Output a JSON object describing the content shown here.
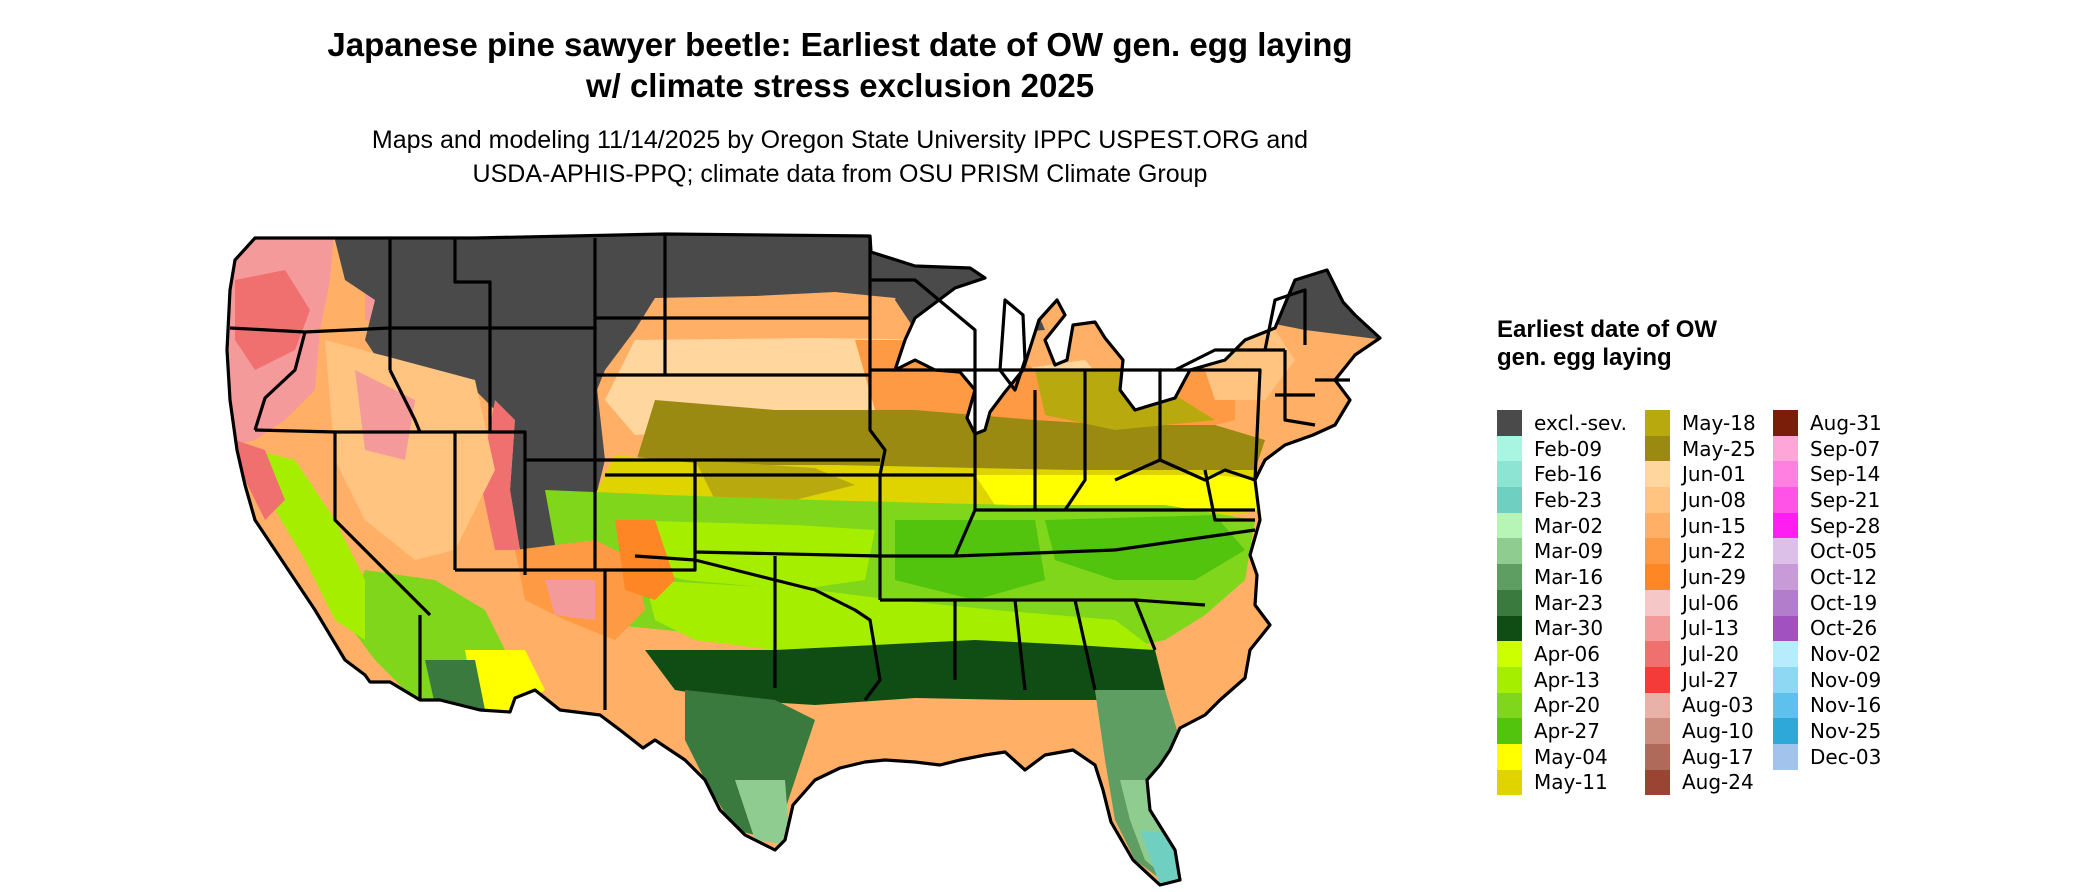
{
  "header": {
    "title_line1": "Japanese pine sawyer beetle: Earliest date of OW gen. egg laying",
    "title_line2": "w/ climate stress exclusion 2025",
    "subtitle_line1": "Maps and modeling 11/14/2025 by Oregon State University IPPC USPEST.ORG and",
    "subtitle_line2": "USDA-APHIS-PPQ; climate data from OSU PRISM Climate Group"
  },
  "legend": {
    "title": "Earliest date of OW gen. egg laying",
    "columns": [
      [
        {
          "label": "excl.-sev.",
          "color": "#4a4a4a"
        },
        {
          "label": "Feb-09",
          "color": "#a8f5e2"
        },
        {
          "label": "Feb-16",
          "color": "#8ee4d3"
        },
        {
          "label": "Feb-23",
          "color": "#6fd0c2"
        },
        {
          "label": "Mar-02",
          "color": "#b6f5b6"
        },
        {
          "label": "Mar-09",
          "color": "#8fcc8f"
        },
        {
          "label": "Mar-16",
          "color": "#5f9e63"
        },
        {
          "label": "Mar-23",
          "color": "#3a7a3f"
        },
        {
          "label": "Mar-30",
          "color": "#104d14"
        },
        {
          "label": "Apr-06",
          "color": "#ccff00"
        },
        {
          "label": "Apr-13",
          "color": "#a6ee00"
        },
        {
          "label": "Apr-20",
          "color": "#7fd61a"
        },
        {
          "label": "Apr-27",
          "color": "#52c40e"
        },
        {
          "label": "May-04",
          "color": "#ffff00"
        },
        {
          "label": "May-11",
          "color": "#e0d400"
        }
      ],
      [
        {
          "label": "May-18",
          "color": "#b8aa0e"
        },
        {
          "label": "May-25",
          "color": "#9a8a12"
        },
        {
          "label": "Jun-01",
          "color": "#ffd79e"
        },
        {
          "label": "Jun-08",
          "color": "#ffc47f"
        },
        {
          "label": "Jun-15",
          "color": "#ffb066"
        },
        {
          "label": "Jun-22",
          "color": "#ff9a44"
        },
        {
          "label": "Jun-29",
          "color": "#ff8624"
        },
        {
          "label": "Jul-06",
          "color": "#f5c7c7"
        },
        {
          "label": "Jul-13",
          "color": "#f59a9a"
        },
        {
          "label": "Jul-20",
          "color": "#f07070"
        },
        {
          "label": "Jul-27",
          "color": "#f53a3a"
        },
        {
          "label": "Aug-03",
          "color": "#e8b2a8"
        },
        {
          "label": "Aug-10",
          "color": "#cc8c7e"
        },
        {
          "label": "Aug-17",
          "color": "#b06a5a"
        },
        {
          "label": "Aug-24",
          "color": "#9a4434"
        }
      ],
      [
        {
          "label": "Aug-31",
          "color": "#7a1e0a"
        },
        {
          "label": "Sep-07",
          "color": "#ffa6d8"
        },
        {
          "label": "Sep-14",
          "color": "#ff80e0"
        },
        {
          "label": "Sep-21",
          "color": "#ff52e6"
        },
        {
          "label": "Sep-28",
          "color": "#ff1ef2"
        },
        {
          "label": "Oct-05",
          "color": "#ddc0e8"
        },
        {
          "label": "Oct-12",
          "color": "#c89ad8"
        },
        {
          "label": "Oct-19",
          "color": "#b27ecc"
        },
        {
          "label": "Oct-26",
          "color": "#a252c0"
        },
        {
          "label": "Nov-02",
          "color": "#b6ecfc"
        },
        {
          "label": "Nov-09",
          "color": "#8ed8f4"
        },
        {
          "label": "Nov-16",
          "color": "#5ec0ec"
        },
        {
          "label": "Nov-25",
          "color": "#2ea8d8"
        },
        {
          "label": "Dec-03",
          "color": "#a2c4ec"
        }
      ]
    ]
  },
  "map_colors": {
    "state_border": "#000000",
    "excluded": "#4a4a4a",
    "coast_dark": "#104d14",
    "background": "#ffffff"
  }
}
